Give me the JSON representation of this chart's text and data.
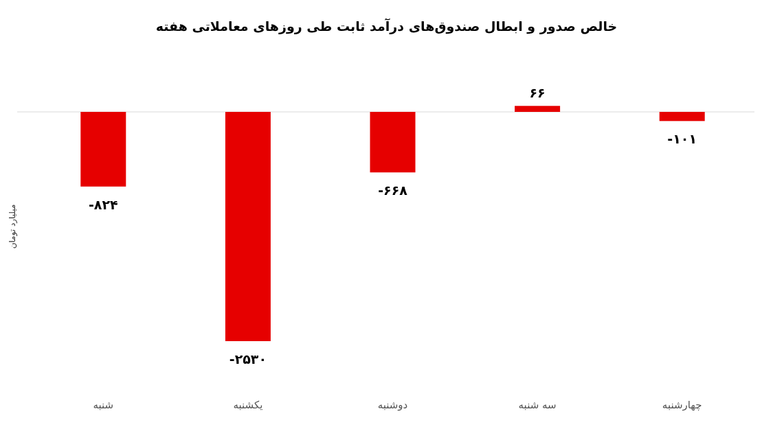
{
  "chart_data": {
    "type": "bar",
    "title": "خالص صدور و ابطال صندوق‌های درآمد ثابت طی روزهای معاملاتی هفته",
    "ylabel": "میلیارد تومان",
    "categories": [
      "شنبه",
      "یکشنبه",
      "دوشنبه",
      "سه شنبه",
      "چهارشنبه"
    ],
    "values": [
      -824,
      -2530,
      -668,
      66,
      -101
    ],
    "value_labels": [
      "-۸۲۴",
      "-۲۵۳۰",
      "-۶۶۸",
      "۶۶",
      "-۱۰۱"
    ],
    "color": "#e60000"
  }
}
